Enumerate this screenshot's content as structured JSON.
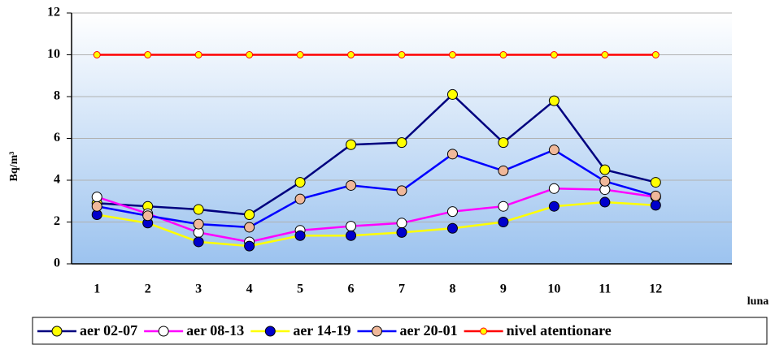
{
  "chart_data": {
    "type": "line",
    "y_label": "Bq/m³",
    "x_label": "luna",
    "categories": [
      "1",
      "2",
      "3",
      "4",
      "5",
      "6",
      "7",
      "8",
      "9",
      "10",
      "11",
      "12",
      null
    ],
    "series": [
      {
        "name": "aer 02-07",
        "color": "#00007f",
        "marker_color": "#ffff00",
        "values": [
          2.9,
          2.75,
          2.6,
          2.35,
          3.9,
          5.7,
          5.8,
          8.1,
          5.8,
          7.8,
          4.5,
          3.9,
          null
        ]
      },
      {
        "name": "aer 08-13",
        "color": "#ff00ff",
        "marker_color": "#ffffff",
        "values": [
          3.2,
          2.4,
          1.5,
          1.05,
          1.6,
          1.8,
          1.95,
          2.5,
          2.75,
          3.6,
          3.55,
          3.2,
          null
        ]
      },
      {
        "name": "aer 14-19",
        "color": "#ffff00",
        "marker_color": "#0000cc",
        "values": [
          2.35,
          1.95,
          1.05,
          0.85,
          1.35,
          1.35,
          1.5,
          1.7,
          2.0,
          2.75,
          2.95,
          2.8,
          null
        ]
      },
      {
        "name": "aer 20-01",
        "color": "#0000ff",
        "marker_color": "#f0b89a",
        "values": [
          2.75,
          2.3,
          1.9,
          1.75,
          3.1,
          3.75,
          3.5,
          5.25,
          4.45,
          5.45,
          3.95,
          3.25,
          null
        ]
      },
      {
        "name": "nivel atentionare",
        "color": "#ff0000",
        "marker_color": "#ffff00",
        "values": [
          10,
          10,
          10,
          10,
          10,
          10,
          10,
          10,
          10,
          10,
          10,
          10,
          null
        ]
      }
    ],
    "ylim": [
      0,
      12
    ],
    "yticks": [
      0,
      2,
      4,
      6,
      8,
      10,
      12
    ],
    "grid": true
  }
}
